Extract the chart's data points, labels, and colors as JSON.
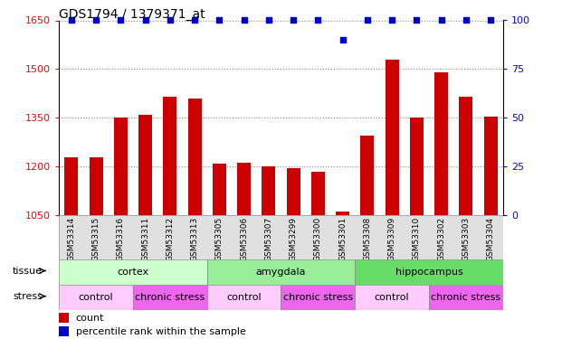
{
  "title": "GDS1794 / 1379371_at",
  "samples": [
    "GSM53314",
    "GSM53315",
    "GSM53316",
    "GSM53311",
    "GSM53312",
    "GSM53313",
    "GSM53305",
    "GSM53306",
    "GSM53307",
    "GSM53299",
    "GSM53300",
    "GSM53301",
    "GSM53308",
    "GSM53309",
    "GSM53310",
    "GSM53302",
    "GSM53303",
    "GSM53304"
  ],
  "counts": [
    1228,
    1228,
    1350,
    1360,
    1415,
    1410,
    1210,
    1213,
    1202,
    1195,
    1183,
    1062,
    1295,
    1530,
    1350,
    1490,
    1415,
    1355
  ],
  "percentiles": [
    100,
    100,
    100,
    100,
    100,
    100,
    100,
    100,
    100,
    100,
    100,
    90,
    100,
    100,
    100,
    100,
    100,
    100
  ],
  "ylim_left": [
    1050,
    1650
  ],
  "ylim_right": [
    0,
    100
  ],
  "yticks_left": [
    1050,
    1200,
    1350,
    1500,
    1650
  ],
  "yticks_right": [
    0,
    25,
    50,
    75,
    100
  ],
  "bar_color": "#cc0000",
  "dot_color": "#0000cc",
  "tissue_groups": [
    {
      "label": "cortex",
      "start": 0,
      "end": 6,
      "color": "#ccffcc"
    },
    {
      "label": "amygdala",
      "start": 6,
      "end": 12,
      "color": "#99ee99"
    },
    {
      "label": "hippocampus",
      "start": 12,
      "end": 18,
      "color": "#66dd66"
    }
  ],
  "stress_groups": [
    {
      "label": "control",
      "start": 0,
      "end": 3,
      "color": "#ffccff"
    },
    {
      "label": "chronic stress",
      "start": 3,
      "end": 6,
      "color": "#ee66ee"
    },
    {
      "label": "control",
      "start": 6,
      "end": 9,
      "color": "#ffccff"
    },
    {
      "label": "chronic stress",
      "start": 9,
      "end": 12,
      "color": "#ee66ee"
    },
    {
      "label": "control",
      "start": 12,
      "end": 15,
      "color": "#ffccff"
    },
    {
      "label": "chronic stress",
      "start": 15,
      "end": 18,
      "color": "#ee66ee"
    }
  ],
  "legend_count_color": "#cc0000",
  "legend_dot_color": "#0000cc",
  "background_color": "#ffffff",
  "grid_color": "#888888"
}
